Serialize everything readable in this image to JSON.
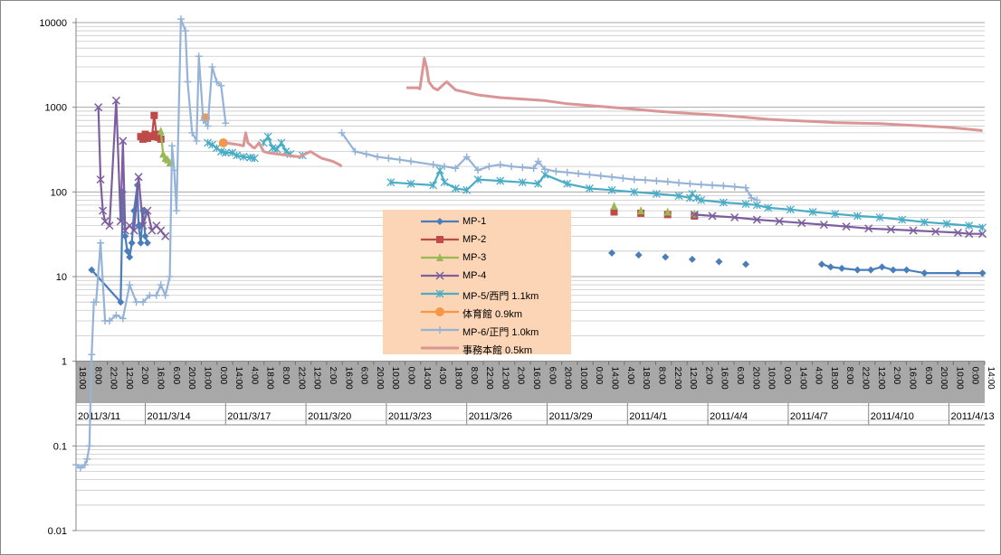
{
  "chart_data": {
    "type": "line",
    "title": "",
    "xlabel": "",
    "ylabel": "",
    "y_scale": "log",
    "ylim": [
      0.01,
      10000
    ],
    "y_ticks": [
      "10000",
      "1000",
      "100",
      "10",
      "1",
      "0.1",
      "0.01"
    ],
    "grid": true,
    "legend_position": "center",
    "x_range_hours": [
      0,
      814
    ],
    "x_hour_ticks": [
      "18:00",
      "8:00",
      "22:00",
      "12:00",
      "2:00",
      "16:00",
      "6:00",
      "20:00",
      "10:00",
      "0:00",
      "14:00",
      "4:00",
      "18:00",
      "8:00",
      "22:00",
      "12:00",
      "2:00",
      "16:00",
      "6:00",
      "20:00",
      "10:00",
      "0:00",
      "14:00",
      "4:00",
      "18:00",
      "8:00",
      "22:00",
      "12:00",
      "2:00",
      "16:00",
      "6:00",
      "20:00",
      "10:00",
      "0:00",
      "14:00",
      "4:00",
      "18:00",
      "8:00",
      "22:00",
      "12:00",
      "2:00",
      "16:00",
      "6:00",
      "20:00",
      "10:00",
      "0:00",
      "14:00",
      "4:00",
      "18:00",
      "8:00",
      "22:00",
      "12:00",
      "2:00",
      "16:00",
      "6:00",
      "20:00",
      "10:00",
      "0:00",
      "14:00"
    ],
    "x_date_ticks": [
      {
        "label": "2011/3/11",
        "hours": 0
      },
      {
        "label": "2011/3/14",
        "hours": 62
      },
      {
        "label": "2011/3/17",
        "hours": 134
      },
      {
        "label": "2011/3/20",
        "hours": 206
      },
      {
        "label": "2011/3/23",
        "hours": 278
      },
      {
        "label": "2011/3/26",
        "hours": 350
      },
      {
        "label": "2011/3/29",
        "hours": 422
      },
      {
        "label": "2011/4/1",
        "hours": 494
      },
      {
        "label": "2011/4/4",
        "hours": 566
      },
      {
        "label": "2011/4/7",
        "hours": 638
      },
      {
        "label": "2011/4/10",
        "hours": 710
      },
      {
        "label": "2011/4/13",
        "hours": 782
      }
    ],
    "series": [
      {
        "name": "MP-1",
        "color": "#4a7ebb",
        "marker": "diamond",
        "line": true,
        "x": [
          14,
          40,
          42,
          44,
          46,
          48,
          50,
          52,
          55,
          56,
          58,
          60,
          62,
          64
        ],
        "y": [
          12,
          5,
          100,
          30,
          20,
          17,
          25,
          60,
          120,
          40,
          25,
          60,
          30,
          25
        ]
      },
      {
        "name": "MP-1",
        "color": "#4a7ebb",
        "marker": "diamond",
        "line": false,
        "x": [
          480,
          504,
          528,
          552,
          576,
          600
        ],
        "y": [
          19,
          18,
          17,
          16,
          15,
          14
        ]
      },
      {
        "name": "MP-1",
        "color": "#4a7ebb",
        "marker": "diamond",
        "line": true,
        "x": [
          668,
          676,
          686,
          700,
          712,
          722,
          732,
          744,
          760,
          790,
          812
        ],
        "y": [
          14,
          13,
          12.5,
          12,
          12,
          13,
          12,
          12,
          11,
          11,
          11
        ]
      },
      {
        "name": "MP-2",
        "color": "#be4b48",
        "marker": "square",
        "line": true,
        "x": [
          58,
          60,
          62,
          64,
          66,
          68,
          70,
          72,
          74,
          76
        ],
        "y": [
          450,
          420,
          480,
          430,
          460,
          450,
          800,
          480,
          440,
          420
        ]
      },
      {
        "name": "MP-2",
        "color": "#be4b48",
        "marker": "square",
        "line": false,
        "x": [
          482,
          506,
          530,
          554
        ],
        "y": [
          58,
          56,
          54,
          52
        ]
      },
      {
        "name": "MP-3",
        "color": "#98b954",
        "marker": "triangle",
        "line": true,
        "x": [
          76,
          78,
          80,
          82,
          84
        ],
        "y": [
          520,
          280,
          250,
          240,
          220
        ]
      },
      {
        "name": "MP-3",
        "color": "#98b954",
        "marker": "triangle",
        "line": false,
        "x": [
          482,
          506,
          530,
          554
        ],
        "y": [
          68,
          60,
          58,
          55
        ]
      },
      {
        "name": "MP-4",
        "color": "#7d5fa0",
        "marker": "x",
        "line": true,
        "x": [
          20,
          22,
          24,
          26,
          30,
          36,
          40,
          42,
          44,
          48,
          52,
          56,
          60,
          64,
          68,
          72,
          76,
          80
        ],
        "y": [
          1000,
          140,
          60,
          45,
          40,
          1200,
          45,
          400,
          35,
          40,
          35,
          150,
          40,
          60,
          35,
          40,
          35,
          30
        ]
      },
      {
        "name": "MP-4",
        "color": "#7d5fa0",
        "marker": "x",
        "line": true,
        "x": [
          554,
          570,
          590,
          610,
          630,
          650,
          670,
          690,
          710,
          730,
          750,
          770,
          790,
          800,
          812
        ],
        "y": [
          54,
          52,
          50,
          47,
          45,
          43,
          41,
          39,
          37,
          36,
          35,
          34,
          33,
          32,
          32
        ]
      },
      {
        "name": "MP-5/西門 1.1km",
        "color": "#4aacc6",
        "marker": "asterisk",
        "line": true,
        "x": [
          118,
          122,
          126,
          130,
          134,
          140,
          144,
          150,
          156,
          160
        ],
        "y": [
          380,
          360,
          330,
          300,
          290,
          290,
          270,
          260,
          255,
          250
        ]
      },
      {
        "name": "MP-5/西門 1.1km",
        "color": "#4aacc6",
        "marker": "asterisk",
        "line": true,
        "x": [
          168,
          172,
          176,
          180,
          184,
          188,
          192
        ],
        "y": [
          380,
          450,
          330,
          320,
          380,
          300,
          280
        ]
      },
      {
        "name": "MP-5/西門 1.1km",
        "color": "#4aacc6",
        "marker": "asterisk",
        "line": false,
        "x": [
          203
        ],
        "y": [
          270
        ]
      },
      {
        "name": "MP-5/西門 1.1km",
        "color": "#4aacc6",
        "marker": "asterisk",
        "line": true,
        "x": [
          282,
          300,
          320,
          326,
          330,
          340,
          350,
          360,
          380,
          400,
          414,
          420,
          440,
          460,
          480,
          500,
          520,
          540,
          550,
          552,
          556,
          560,
          580,
          600,
          610,
          620,
          640,
          660,
          680,
          700,
          720,
          740,
          760,
          780,
          800,
          812
        ],
        "y": [
          130,
          125,
          120,
          180,
          130,
          110,
          105,
          140,
          135,
          130,
          125,
          160,
          125,
          110,
          105,
          100,
          95,
          90,
          85,
          95,
          85,
          80,
          75,
          72,
          70,
          65,
          62,
          58,
          55,
          52,
          50,
          47,
          44,
          42,
          40,
          38
        ]
      },
      {
        "name": "体育館 0.9km",
        "color": "#f79646",
        "marker": "circle",
        "line": false,
        "x": [
          116,
          132
        ],
        "y": [
          750,
          380
        ]
      },
      {
        "name": "MP-6/正門 1.0km",
        "color": "#95b3d7",
        "marker": "plus",
        "line": true,
        "x": [
          0,
          4,
          8,
          10,
          12,
          14,
          16,
          18,
          22,
          26,
          30,
          36,
          42,
          48,
          54,
          60,
          66,
          72,
          76,
          80,
          84,
          86,
          88,
          90,
          94,
          98,
          100,
          104,
          108,
          110,
          114,
          118,
          122,
          126,
          130,
          134
        ],
        "y": [
          0.06,
          0.055,
          0.06,
          0.07,
          0.1,
          1.2,
          5,
          5,
          25,
          3,
          3,
          3.5,
          3.2,
          8,
          5,
          5,
          6,
          6,
          8,
          6,
          10,
          350,
          180,
          60,
          11000,
          8000,
          2000,
          500,
          400,
          4000,
          700,
          600,
          3000,
          2000,
          1800,
          650
        ]
      },
      {
        "name": "MP-6/正門 1.0km",
        "color": "#95b3d7",
        "marker": "plus",
        "line": true,
        "x": [
          238,
          250,
          260,
          270,
          280,
          290,
          300,
          320,
          330,
          340,
          350,
          360,
          370,
          380,
          390,
          400,
          410,
          414,
          420,
          430,
          440,
          450,
          460,
          470,
          480,
          490,
          500,
          510,
          520,
          530,
          540,
          550,
          560,
          570,
          580,
          590,
          600,
          605,
          610
        ],
        "y": [
          500,
          300,
          280,
          260,
          250,
          240,
          230,
          210,
          200,
          190,
          260,
          180,
          200,
          210,
          200,
          195,
          190,
          230,
          185,
          175,
          170,
          165,
          160,
          155,
          150,
          145,
          140,
          138,
          135,
          132,
          128,
          125,
          122,
          120,
          118,
          115,
          112,
          85,
          80
        ]
      },
      {
        "name": "事務本館 0.5km",
        "color": "#d99694",
        "marker": "none",
        "line": true,
        "x": [
          134,
          140,
          146,
          150,
          152,
          154,
          156,
          158,
          160,
          164,
          168,
          172,
          180,
          190,
          200,
          210,
          220,
          230,
          236,
          238
        ],
        "y": [
          380,
          370,
          360,
          350,
          500,
          380,
          360,
          340,
          330,
          380,
          300,
          290,
          280,
          270,
          260,
          300,
          250,
          230,
          210,
          200
        ]
      },
      {
        "name": "事務本館 0.5km",
        "color": "#d99694",
        "marker": "none",
        "line": true,
        "x": [
          296,
          306,
          308,
          310,
          312,
          314,
          316,
          320,
          324,
          328,
          332,
          340,
          350,
          360,
          380,
          400,
          420,
          440,
          460,
          480,
          500,
          520,
          540,
          560,
          580,
          600,
          620,
          640,
          660,
          680,
          700,
          720,
          740,
          760,
          780,
          800,
          812
        ],
        "y": [
          1700,
          1700,
          1650,
          2500,
          3800,
          3000,
          2000,
          1700,
          1600,
          1800,
          2000,
          1600,
          1500,
          1400,
          1300,
          1250,
          1200,
          1100,
          1050,
          1000,
          950,
          900,
          860,
          830,
          800,
          760,
          720,
          700,
          680,
          660,
          650,
          640,
          620,
          600,
          580,
          550,
          530
        ]
      }
    ],
    "legend": [
      {
        "label": "MP-1",
        "color": "#4a7ebb",
        "marker": "diamond"
      },
      {
        "label": "MP-2",
        "color": "#be4b48",
        "marker": "square"
      },
      {
        "label": "MP-3",
        "color": "#98b954",
        "marker": "triangle"
      },
      {
        "label": "MP-4",
        "color": "#7d5fa0",
        "marker": "x"
      },
      {
        "label": "MP-5/西門 1.1km",
        "color": "#4aacc6",
        "marker": "asterisk"
      },
      {
        "label": "体育館 0.9km",
        "color": "#f79646",
        "marker": "circle"
      },
      {
        "label": "MP-6/正門 1.0km",
        "color": "#95b3d7",
        "marker": "plus"
      },
      {
        "label": "事務本館 0.5km",
        "color": "#d99694",
        "marker": "none"
      }
    ]
  }
}
